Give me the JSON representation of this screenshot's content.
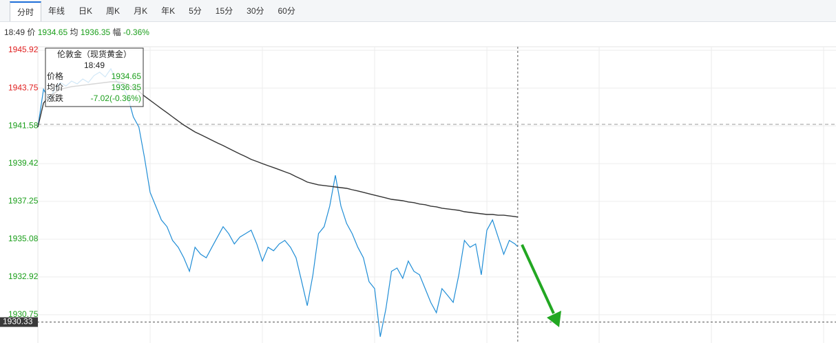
{
  "tabs": [
    "分时",
    "年线",
    "日K",
    "周K",
    "月K",
    "年K",
    "5分",
    "15分",
    "30分",
    "60分"
  ],
  "quote": {
    "time": "18:49",
    "price_label": "价",
    "price": "1934.65",
    "avg_label": "均",
    "avg": "1936.35",
    "change_label": "幅",
    "change": "-0.36%"
  },
  "tooltip": {
    "title": "伦敦金（现货黄金）",
    "change_label": "涨跌",
    "change": "-7.02(-0.36%)"
  },
  "chart_data": {
    "type": "line",
    "x": [
      0,
      10,
      20,
      30,
      40,
      50,
      60,
      70,
      80,
      90,
      100,
      110,
      120,
      130,
      140,
      150,
      160,
      170,
      180,
      190,
      200,
      210,
      220,
      230,
      240,
      250,
      260,
      270,
      280,
      290,
      300,
      310,
      320,
      330,
      340,
      350,
      360,
      370,
      380,
      390,
      400,
      410,
      420,
      430,
      440,
      450,
      460,
      470,
      480,
      490,
      500,
      510,
      520,
      530,
      540,
      550,
      560,
      570,
      580,
      590,
      600,
      610,
      620,
      630,
      640,
      650,
      660,
      670,
      680,
      690,
      700,
      710,
      720,
      730,
      740,
      750,
      760,
      770,
      780,
      790,
      800,
      810,
      820,
      830,
      840,
      850,
      855
    ],
    "xlim": [
      0,
      1422
    ],
    "xticks": [
      200,
      400,
      600,
      800,
      1000,
      1200,
      1400
    ],
    "ylim": [
      1929.13,
      1946.12
    ],
    "yticks": [
      1930.75,
      1932.92,
      1935.08,
      1937.25,
      1939.42,
      1941.58,
      1943.75,
      1945.92
    ],
    "prev_close": 1941.67,
    "up_color": "#e02020",
    "down_color": "#1a9e1a",
    "crosshair_value": 1930.33,
    "grid": true,
    "series": [
      {
        "name": "价格",
        "color": "#1f8dd6",
        "values": [
          1941.51,
          1943.68,
          1943.09,
          1943.68,
          1944.07,
          1943.87,
          1944.15,
          1943.99,
          1944.27,
          1944.07,
          1944.47,
          1944.66,
          1944.39,
          1944.86,
          1944.15,
          1943.87,
          1943.28,
          1942.1,
          1941.51,
          1939.74,
          1937.77,
          1936.98,
          1936.19,
          1935.8,
          1935.01,
          1934.62,
          1934.02,
          1933.24,
          1934.62,
          1934.22,
          1934.02,
          1934.62,
          1935.21,
          1935.8,
          1935.4,
          1934.81,
          1935.21,
          1935.4,
          1935.6,
          1934.81,
          1933.83,
          1934.62,
          1934.42,
          1934.81,
          1935.01,
          1934.62,
          1934.02,
          1932.65,
          1931.27,
          1933.04,
          1935.4,
          1935.8,
          1936.98,
          1938.75,
          1936.98,
          1935.99,
          1935.4,
          1934.62,
          1934.02,
          1932.65,
          1932.25,
          1929.49,
          1931.07,
          1933.24,
          1933.43,
          1932.84,
          1933.83,
          1933.24,
          1933.04,
          1932.25,
          1931.46,
          1930.87,
          1932.25,
          1931.86,
          1931.46,
          1933.04,
          1935.01,
          1934.62,
          1934.81,
          1933.04,
          1935.6,
          1936.19,
          1935.21,
          1934.22,
          1935.01,
          1934.81,
          1934.65
        ]
      },
      {
        "name": "均价",
        "color": "#333333",
        "values": [
          1941.51,
          1942.89,
          1943.28,
          1943.48,
          1943.68,
          1943.76,
          1943.83,
          1943.87,
          1943.91,
          1943.95,
          1943.99,
          1944.03,
          1944.07,
          1944.11,
          1944.11,
          1944.07,
          1943.95,
          1943.76,
          1943.56,
          1943.28,
          1943.05,
          1942.81,
          1942.57,
          1942.34,
          1942.1,
          1941.86,
          1941.63,
          1941.43,
          1941.23,
          1941.08,
          1940.92,
          1940.76,
          1940.6,
          1940.45,
          1940.29,
          1940.13,
          1939.97,
          1939.82,
          1939.66,
          1939.54,
          1939.42,
          1939.3,
          1939.19,
          1939.07,
          1938.95,
          1938.83,
          1938.67,
          1938.52,
          1938.36,
          1938.28,
          1938.2,
          1938.16,
          1938.12,
          1938.08,
          1938.04,
          1938.0,
          1937.92,
          1937.85,
          1937.77,
          1937.69,
          1937.61,
          1937.53,
          1937.45,
          1937.37,
          1937.33,
          1937.29,
          1937.22,
          1937.18,
          1937.1,
          1937.06,
          1936.98,
          1936.94,
          1936.86,
          1936.82,
          1936.78,
          1936.74,
          1936.66,
          1936.62,
          1936.58,
          1936.54,
          1936.5,
          1936.5,
          1936.46,
          1936.46,
          1936.42,
          1936.38,
          1936.35
        ]
      }
    ]
  }
}
